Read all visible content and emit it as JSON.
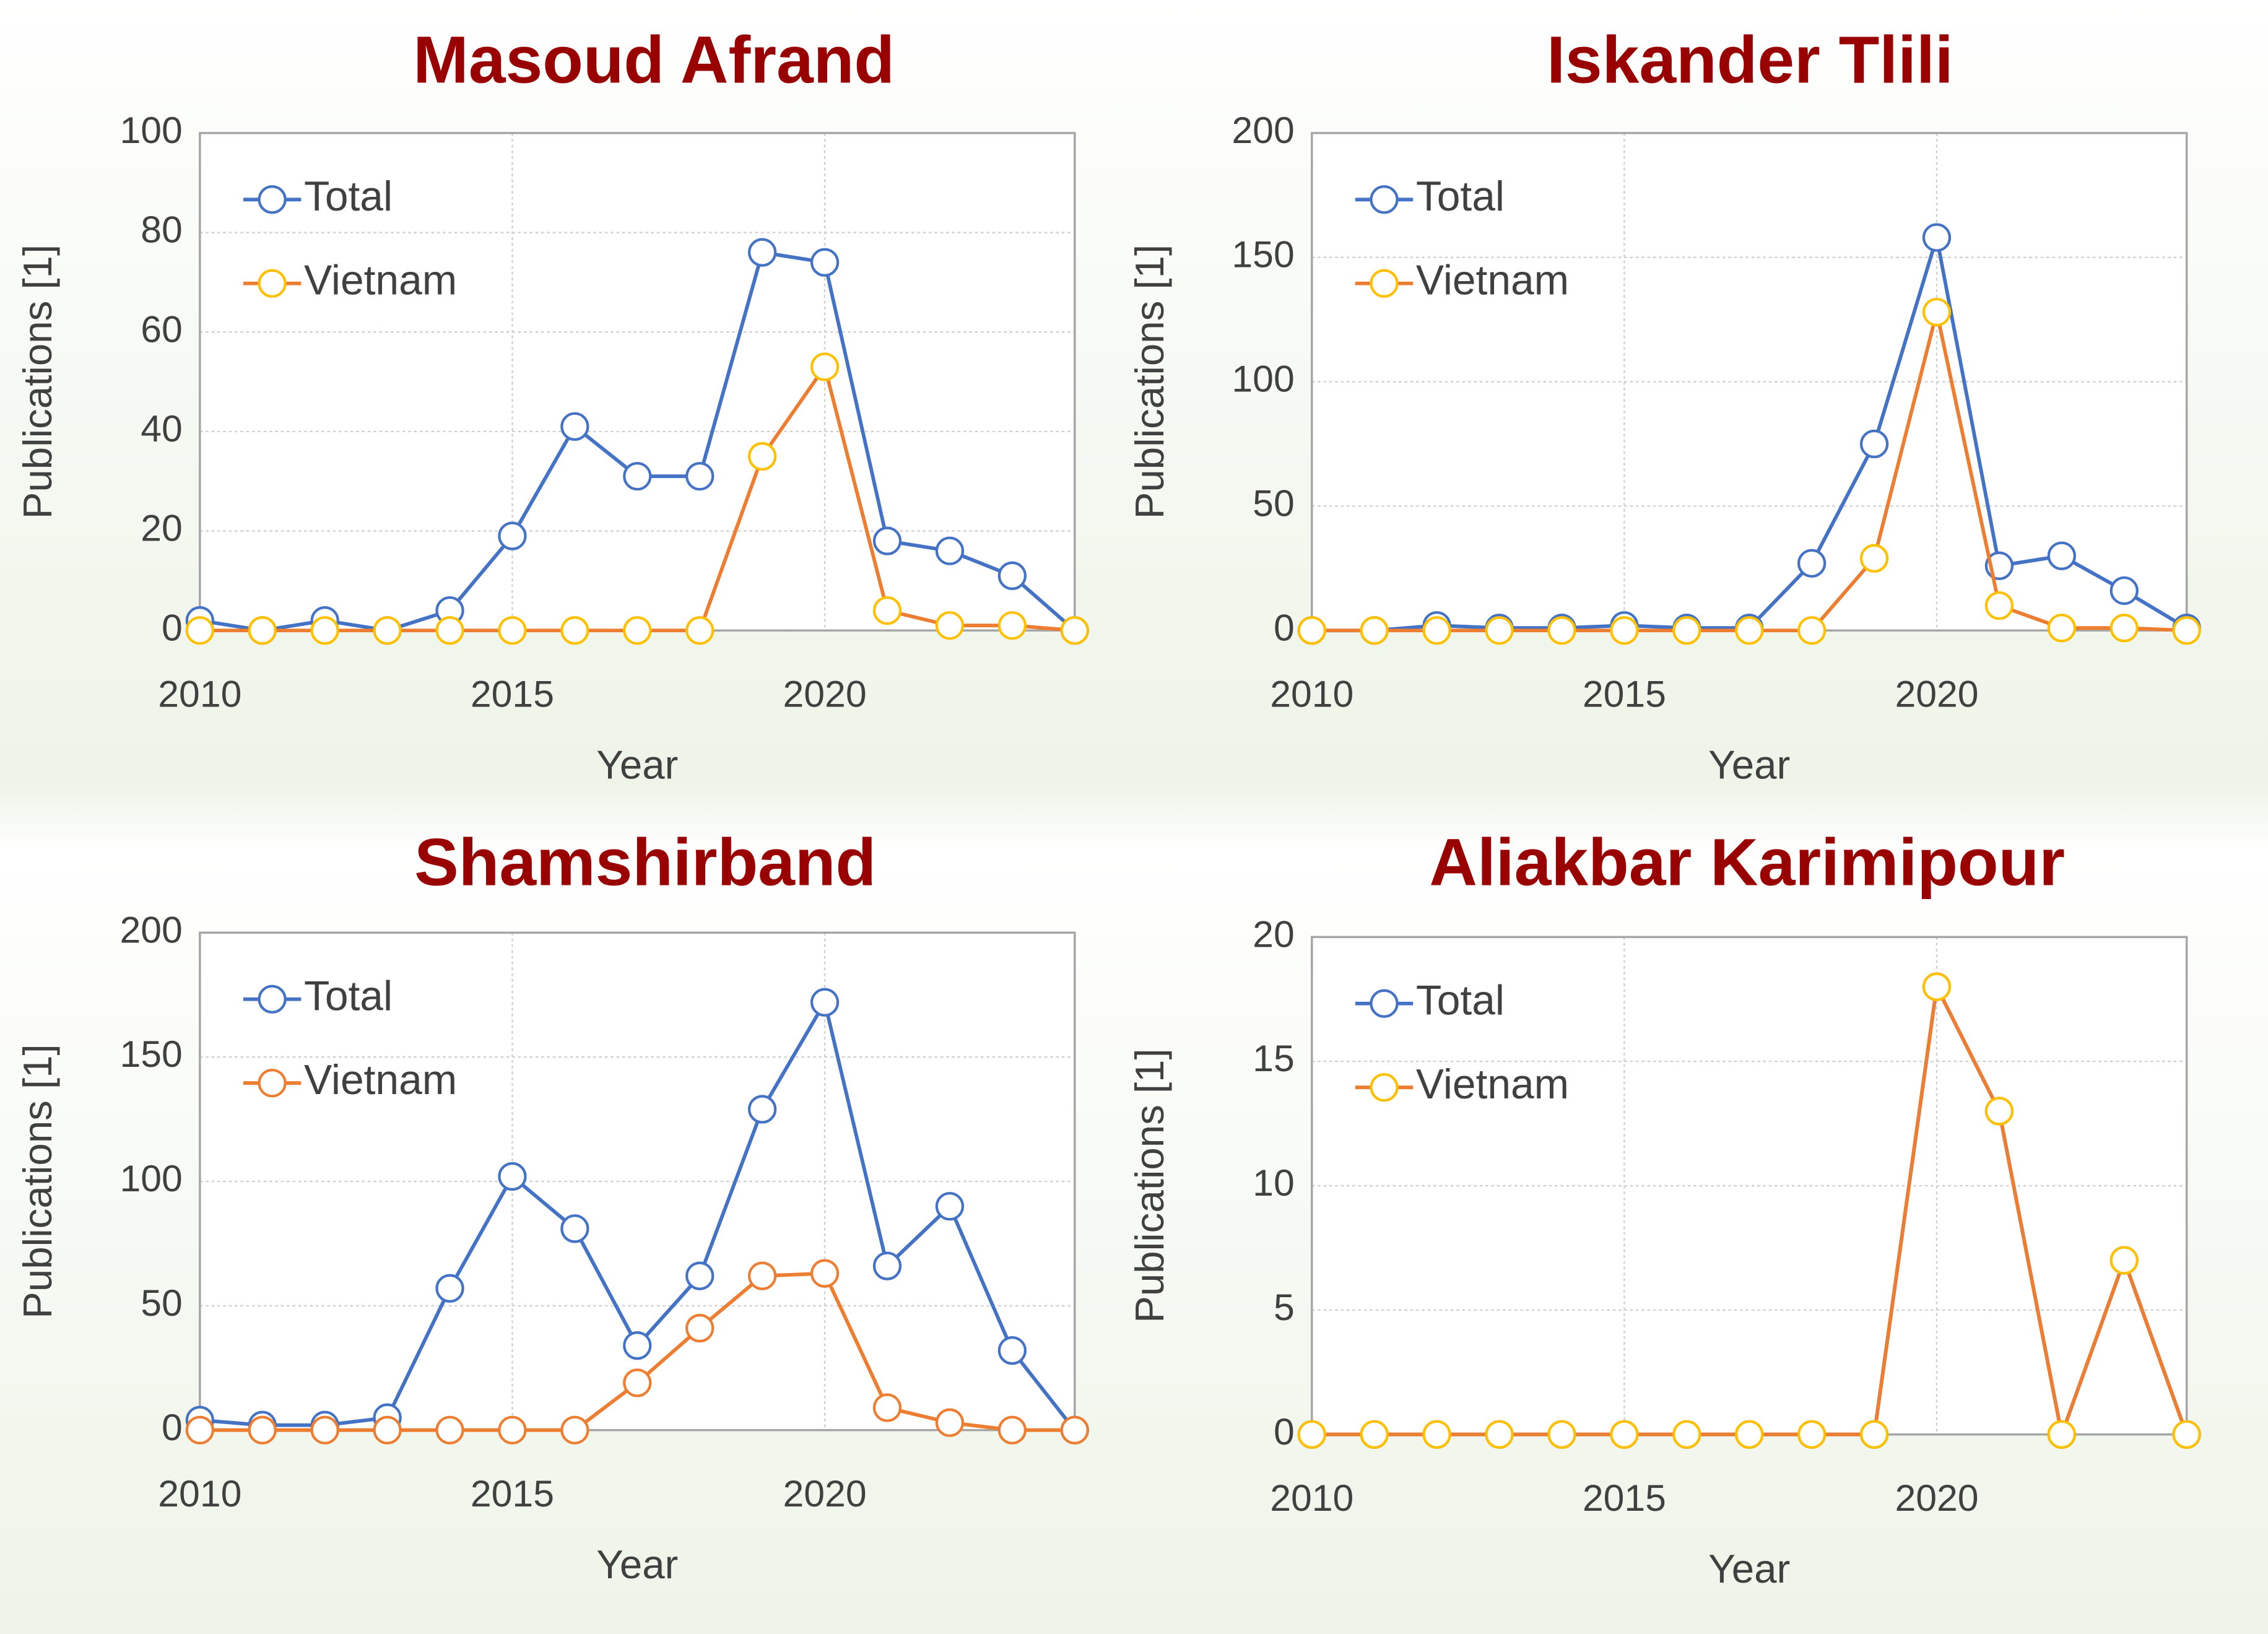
{
  "chart_data": [
    {
      "type": "line",
      "title": "Masoud Afrand",
      "xlabel": "Year",
      "ylabel": "Publications [1]",
      "x": [
        2010,
        2011,
        2012,
        2013,
        2014,
        2015,
        2016,
        2017,
        2018,
        2019,
        2020,
        2021,
        2022,
        2023,
        2024
      ],
      "series": [
        {
          "name": "Total",
          "color": "#4472c4",
          "marker_color": "#4472c4",
          "values": [
            2,
            0,
            2,
            0,
            4,
            19,
            41,
            31,
            31,
            76,
            74,
            18,
            16,
            11,
            0
          ]
        },
        {
          "name": "Vietnam",
          "color": "#ed7d31",
          "marker_color": "#ffc000",
          "values": [
            0,
            0,
            0,
            0,
            0,
            0,
            0,
            0,
            0,
            35,
            53,
            4,
            1,
            1,
            0
          ]
        }
      ],
      "xlim": [
        2010,
        2024
      ],
      "xticks": [
        2010,
        2015,
        2020
      ],
      "ylim": [
        0,
        100
      ],
      "yticks": [
        0,
        20,
        40,
        60,
        80,
        100
      ],
      "grid": true,
      "legend": "upper left"
    },
    {
      "type": "line",
      "title": "Iskander Tlili",
      "xlabel": "Year",
      "ylabel": "Publications [1]",
      "x": [
        2010,
        2011,
        2012,
        2013,
        2014,
        2015,
        2016,
        2017,
        2018,
        2019,
        2020,
        2021,
        2022,
        2023,
        2024
      ],
      "series": [
        {
          "name": "Total",
          "color": "#4472c4",
          "marker_color": "#4472c4",
          "values": [
            0,
            0,
            2,
            1,
            1,
            2,
            1,
            1,
            27,
            75,
            158,
            26,
            30,
            16,
            1
          ]
        },
        {
          "name": "Vietnam",
          "color": "#ed7d31",
          "marker_color": "#ffc000",
          "values": [
            0,
            0,
            0,
            0,
            0,
            0,
            0,
            0,
            0,
            29,
            128,
            10,
            1,
            1,
            0
          ]
        }
      ],
      "xlim": [
        2010,
        2024
      ],
      "xticks": [
        2010,
        2015,
        2020
      ],
      "ylim": [
        0,
        200
      ],
      "yticks": [
        0,
        50,
        100,
        150,
        200
      ],
      "grid": true,
      "legend": "upper left"
    },
    {
      "type": "line",
      "title": "Shamshirband",
      "xlabel": "Year",
      "ylabel": "Publications [1]",
      "x": [
        2010,
        2011,
        2012,
        2013,
        2014,
        2015,
        2016,
        2017,
        2018,
        2019,
        2020,
        2021,
        2022,
        2023,
        2024
      ],
      "series": [
        {
          "name": "Total",
          "color": "#4472c4",
          "marker_color": "#4472c4",
          "values": [
            4,
            2,
            2,
            5,
            57,
            102,
            81,
            34,
            62,
            129,
            172,
            66,
            90,
            32,
            0
          ]
        },
        {
          "name": "Vietnam",
          "color": "#ed7d31",
          "marker_color": "#ed7d31",
          "values": [
            0,
            0,
            0,
            0,
            0,
            0,
            0,
            19,
            41,
            62,
            63,
            9,
            3,
            0,
            0
          ]
        }
      ],
      "xlim": [
        2010,
        2024
      ],
      "xticks": [
        2010,
        2015,
        2020
      ],
      "ylim": [
        0,
        200
      ],
      "yticks": [
        0,
        50,
        100,
        150,
        200
      ],
      "grid": true,
      "legend": "upper left"
    },
    {
      "type": "line",
      "title": "Aliakbar Karimipour",
      "xlabel": "Year",
      "ylabel": "Publications [1]",
      "x": [
        2010,
        2011,
        2012,
        2013,
        2014,
        2015,
        2016,
        2017,
        2018,
        2019,
        2020,
        2021,
        2022,
        2023,
        2024
      ],
      "series": [
        {
          "name": "Total",
          "color": "#4472c4",
          "marker_color": "#4472c4",
          "values": [
            0,
            0,
            0,
            0,
            0,
            0,
            0,
            0,
            0,
            0,
            18,
            13,
            0,
            7,
            0
          ]
        },
        {
          "name": "Vietnam",
          "color": "#ed7d31",
          "marker_color": "#ffc000",
          "values": [
            0,
            0,
            0,
            0,
            0,
            0,
            0,
            0,
            0,
            0,
            18,
            13,
            0,
            7,
            0
          ]
        }
      ],
      "xlim": [
        2010,
        2024
      ],
      "xticks": [
        2010,
        2015,
        2020
      ],
      "ylim": [
        0,
        20
      ],
      "yticks": [
        0,
        5,
        10,
        15,
        20
      ],
      "grid": true,
      "legend": "upper left"
    }
  ]
}
